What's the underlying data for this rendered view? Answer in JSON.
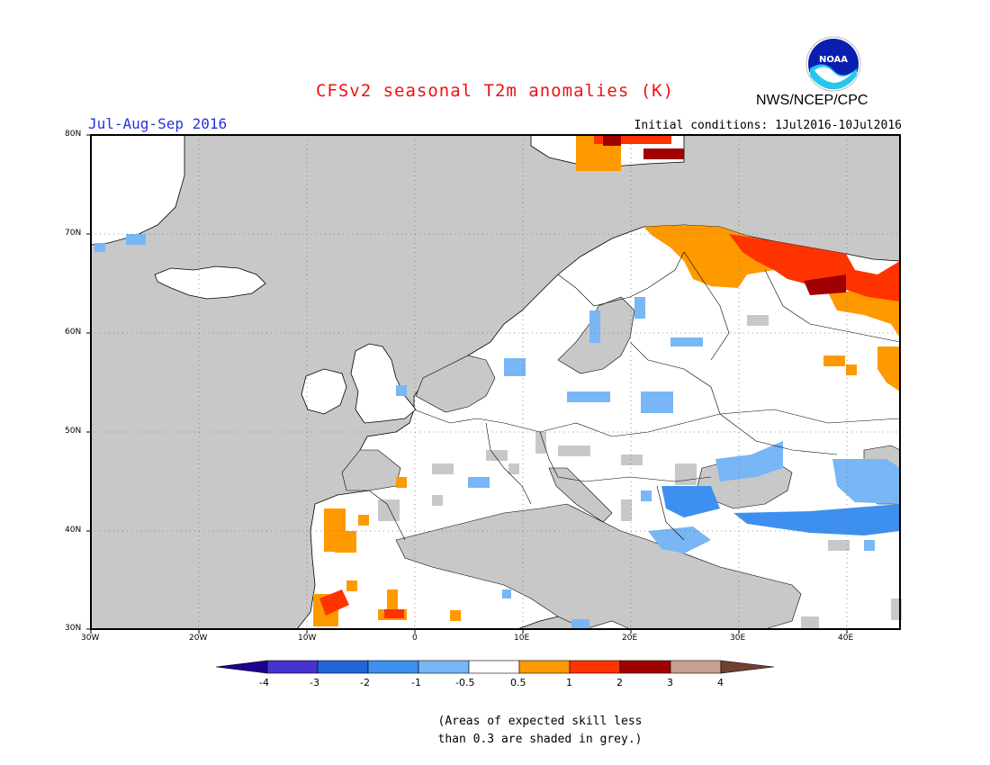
{
  "header": {
    "title": "CFSv2 seasonal T2m anomalies (K)",
    "period": "Jul-Aug-Sep 2016",
    "initial_conditions": "Initial conditions: 1Jul2016-10Jul2016",
    "agency": "NWS/NCEP/CPC",
    "logo_text": "NOAA"
  },
  "map": {
    "lat_labels": [
      "80N",
      "70N",
      "60N",
      "50N",
      "40N",
      "30N"
    ],
    "lon_labels": [
      "30W",
      "20W",
      "10W",
      "0",
      "10E",
      "20E",
      "30E",
      "40E"
    ],
    "lat_range": [
      30,
      80
    ],
    "lon_range": [
      -30,
      45
    ],
    "grid": "dotted"
  },
  "legend": {
    "tick_labels": [
      "-4",
      "-3",
      "-2",
      "-1",
      "-0.5",
      "0.5",
      "1",
      "2",
      "3",
      "4"
    ],
    "colors": [
      "#200090",
      "#4433cc",
      "#1f66d6",
      "#3d90ef",
      "#78b6f5",
      "#ffffff",
      "#ff9900",
      "#ff3300",
      "#a00000",
      "#c8a090",
      "#704030"
    ]
  },
  "note": {
    "line1": "(Areas of expected skill less",
    "line2": "than 0.3 are shaded in grey.)"
  },
  "colors": {
    "grey_low_skill": "#c8c8c8",
    "title_red": "#ee1111",
    "period_blue": "#2233dd"
  }
}
